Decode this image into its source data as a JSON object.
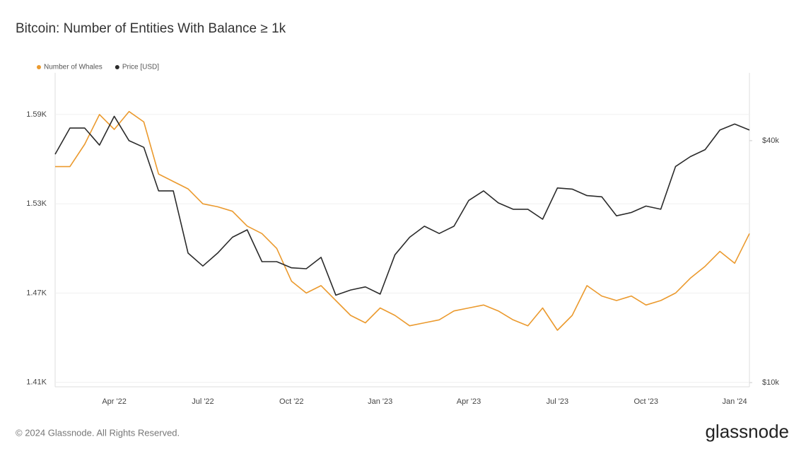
{
  "chart_data": {
    "type": "line",
    "title": "Bitcoin: Number of Entities With Balance ≥ 1k",
    "categories": [
      null,
      null,
      null,
      null,
      "Apr '22",
      null,
      null,
      null,
      null,
      null,
      "Jul '22",
      null,
      null,
      null,
      null,
      null,
      "Oct '22",
      null,
      null,
      null,
      null,
      null,
      "Jan '23",
      null,
      null,
      null,
      null,
      null,
      "Apr '23",
      null,
      null,
      null,
      null,
      null,
      "Jul '23",
      null,
      null,
      null,
      null,
      null,
      "Oct '23",
      null,
      null,
      null,
      null,
      null,
      "Jan '24",
      null
    ],
    "series": [
      {
        "name": "Number of Whales",
        "color": "#eb9a2e",
        "axis": "y",
        "values": [
          1555,
          1555,
          1570,
          1590,
          1580,
          1592,
          1585,
          1550,
          1545,
          1540,
          1530,
          1528,
          1525,
          1515,
          1510,
          1500,
          1478,
          1470,
          1475,
          1465,
          1455,
          1450,
          1460,
          1455,
          1448,
          1450,
          1452,
          1458,
          1460,
          1462,
          1458,
          1452,
          1448,
          1460,
          1445,
          1455,
          1475,
          1468,
          1465,
          1468,
          1462,
          1465,
          1470,
          1480,
          1488,
          1498,
          1490,
          1510
        ]
      },
      {
        "name": "Price [USD]",
        "color": "#2b2b2b",
        "axis": "y2",
        "values": [
          37000,
          43000,
          43000,
          39000,
          46000,
          40000,
          38500,
          30000,
          30000,
          21000,
          19500,
          21000,
          23000,
          24000,
          20000,
          20000,
          19300,
          19200,
          20500,
          16500,
          17000,
          17300,
          16600,
          20800,
          23000,
          24500,
          23500,
          24500,
          28400,
          30000,
          28000,
          27000,
          27000,
          25500,
          30500,
          30300,
          29200,
          29000,
          26000,
          26500,
          27500,
          27000,
          34500,
          36500,
          38000,
          42500,
          44000,
          42500
        ]
      }
    ],
    "ylim": [
      1407,
      1618
    ],
    "yticks": [
      {
        "value": 1410,
        "label": "1.41K"
      },
      {
        "value": 1470,
        "label": "1.47K"
      },
      {
        "value": 1530,
        "label": "1.53K"
      },
      {
        "value": 1590,
        "label": "1.59K"
      }
    ],
    "y2lim": [
      9760,
      59000
    ],
    "y2ticks": [
      {
        "value": 10000,
        "label": "$10k"
      },
      {
        "value": 40000,
        "label": "$40k"
      }
    ],
    "y2log": true,
    "grid": true,
    "legend": "top-left"
  },
  "footer": {
    "copyright": "© 2024 Glassnode. All Rights Reserved.",
    "logo": "glassnode"
  }
}
